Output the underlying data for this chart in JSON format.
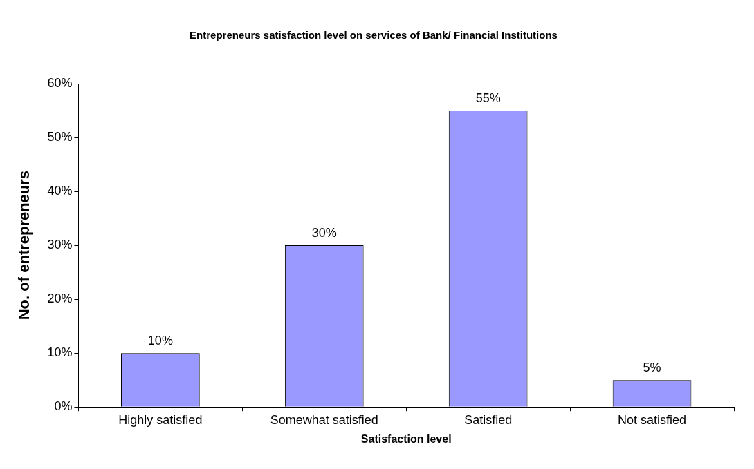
{
  "chart_data": {
    "type": "bar",
    "title": "Entrepreneurs satisfaction level on services of Bank/ Financial Institutions",
    "xlabel": "Satisfaction level",
    "ylabel": "No. of entrepreneurs",
    "categories": [
      "Highly satisfied",
      "Somewhat satisfied",
      "Satisfied",
      "Not satisfied"
    ],
    "values": [
      10,
      30,
      55,
      5
    ],
    "value_labels": [
      "10%",
      "30%",
      "55%",
      "5%"
    ],
    "color": "#9999ff",
    "ylim": [
      0,
      60
    ],
    "yticks": [
      {
        "value": 0,
        "label": "0%"
      },
      {
        "value": 10,
        "label": "10%"
      },
      {
        "value": 20,
        "label": "20%"
      },
      {
        "value": 30,
        "label": "30%"
      },
      {
        "value": 40,
        "label": "40%"
      },
      {
        "value": 50,
        "label": "50%"
      },
      {
        "value": 60,
        "label": "60%"
      }
    ],
    "grid": false,
    "legend": false
  }
}
